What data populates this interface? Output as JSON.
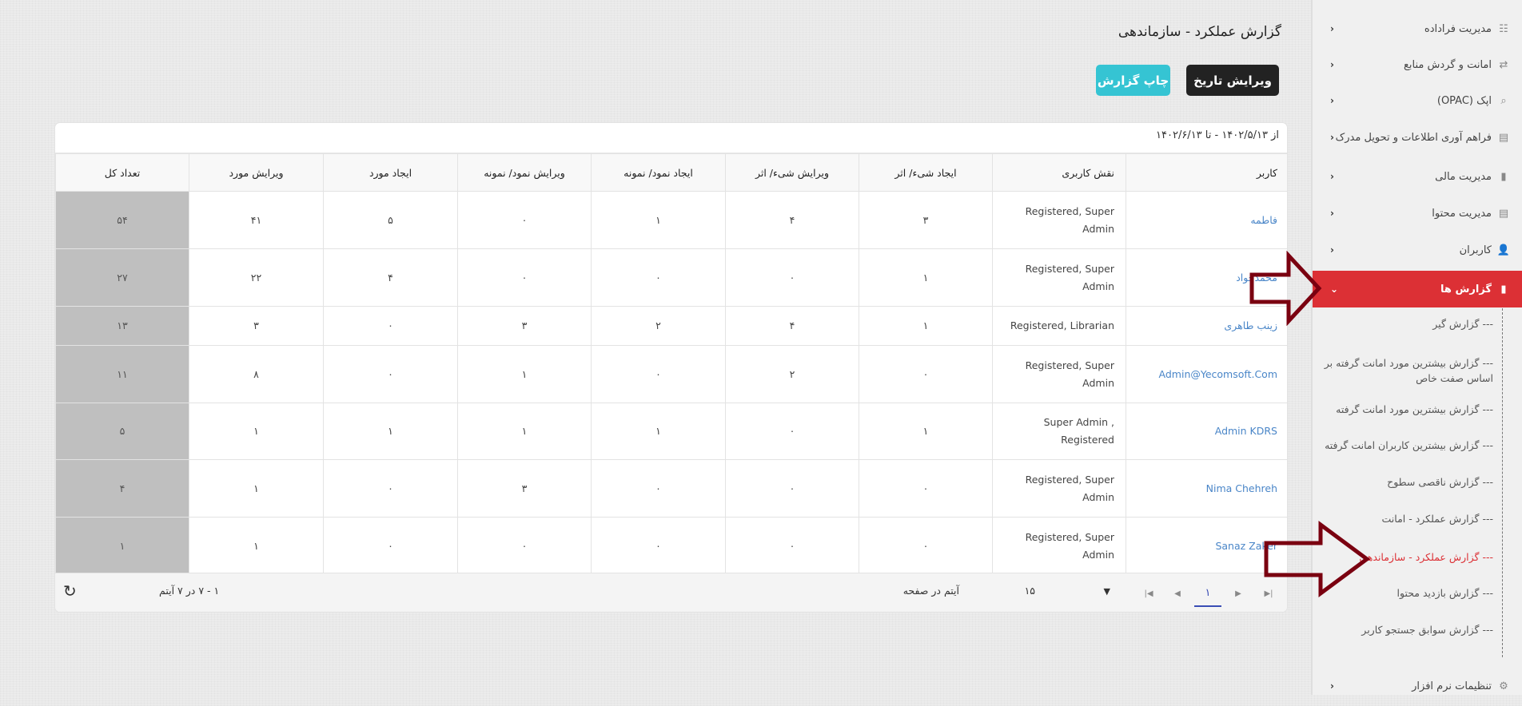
{
  "page": {
    "title": "گزارش عملکرد - سازماندهی",
    "edit_date": "ویرایش تاریخ",
    "print": "چاپ گزارش",
    "date_range": "از ۱۴۰۲/۵/۱۳ - تا ۱۴۰۲/۶/۱۳"
  },
  "table": {
    "headers": [
      "کاربر",
      "نقش کاربری",
      "ایجاد شیء/ اثر",
      "ویرایش شیء/ اثر",
      "ایجاد نمود/ نمونه",
      "ویرایش نمود/ نمونه",
      "ایجاد مورد",
      "ویرایش مورد",
      "تعداد کل"
    ],
    "rows": [
      [
        "فاطمه",
        "Registered, Super Admin",
        "۳",
        "۴",
        "۱",
        "۰",
        "۵",
        "۴۱",
        "۵۴"
      ],
      [
        "محمدجواد",
        "Registered, Super Admin",
        "۱",
        "۰",
        "۰",
        "۰",
        "۴",
        "۲۲",
        "۲۷"
      ],
      [
        "زینب طاهری",
        "Registered, Librarian",
        "۱",
        "۴",
        "۲",
        "۳",
        "۰",
        "۳",
        "۱۳"
      ],
      [
        "Admin@Yecomsoft.Com",
        "Registered, Super Admin",
        "۰",
        "۲",
        "۰",
        "۱",
        "۰",
        "۸",
        "۱۱"
      ],
      [
        "Admin KDRS",
        "Super Admin , Registered",
        "۱",
        "۰",
        "۱",
        "۱",
        "۱",
        "۱",
        "۵"
      ],
      [
        "Nima Chehreh",
        "Registered, Super Admin",
        "۰",
        "۰",
        "۰",
        "۳",
        "۰",
        "۱",
        "۴"
      ],
      [
        "Sanaz Zaker",
        "Registered, Super Admin",
        "۰",
        "۰",
        "۰",
        "۰",
        "۰",
        "۱",
        "۱"
      ]
    ]
  },
  "pager": {
    "current_page": "۱",
    "page_size": "۱۵",
    "page_size_label": "آیتم در صفحه",
    "summary": "۱ - ۷ در ۷ آیتم"
  },
  "sidebar": {
    "items": [
      {
        "label": "مدیریت فراداده",
        "icon": "table-icon"
      },
      {
        "label": "امانت و گردش منابع",
        "icon": "swap-icon"
      },
      {
        "label": "اپک (OPAC)",
        "icon": "search-icon"
      },
      {
        "label": "فراهم آوری اطلاعات و تحویل مدرک",
        "icon": "document-icon"
      },
      {
        "label": "مدیریت مالی",
        "icon": "bar-chart-icon"
      },
      {
        "label": "مدیریت محتوا",
        "icon": "document-icon"
      },
      {
        "label": "کاربران",
        "icon": "user-icon"
      },
      {
        "label": "گزارش ها",
        "icon": "bar-chart-icon"
      }
    ],
    "sub": [
      "--- گزارش گیر",
      "--- گزارش بیشترین مورد امانت گرفته بر اساس صفت خاص",
      "--- گزارش بیشترین مورد امانت گرفته",
      "--- گزارش بیشترین کاربران امانت گرفته",
      "--- گزارش ناقصی سطوح",
      "--- گزارش عملکرد - امانت",
      "--- گزارش عملکرد - سازماندهی",
      "--- گزارش بازدید محتوا",
      "--- گزارش سوابق جستجو کاربر"
    ],
    "settings": "تنظیمات نرم افزار"
  },
  "colors": {
    "active": "#dc3035",
    "link": "#4a86c8",
    "arrow": "#7a0010",
    "total_bg": "#bfbfbf"
  }
}
